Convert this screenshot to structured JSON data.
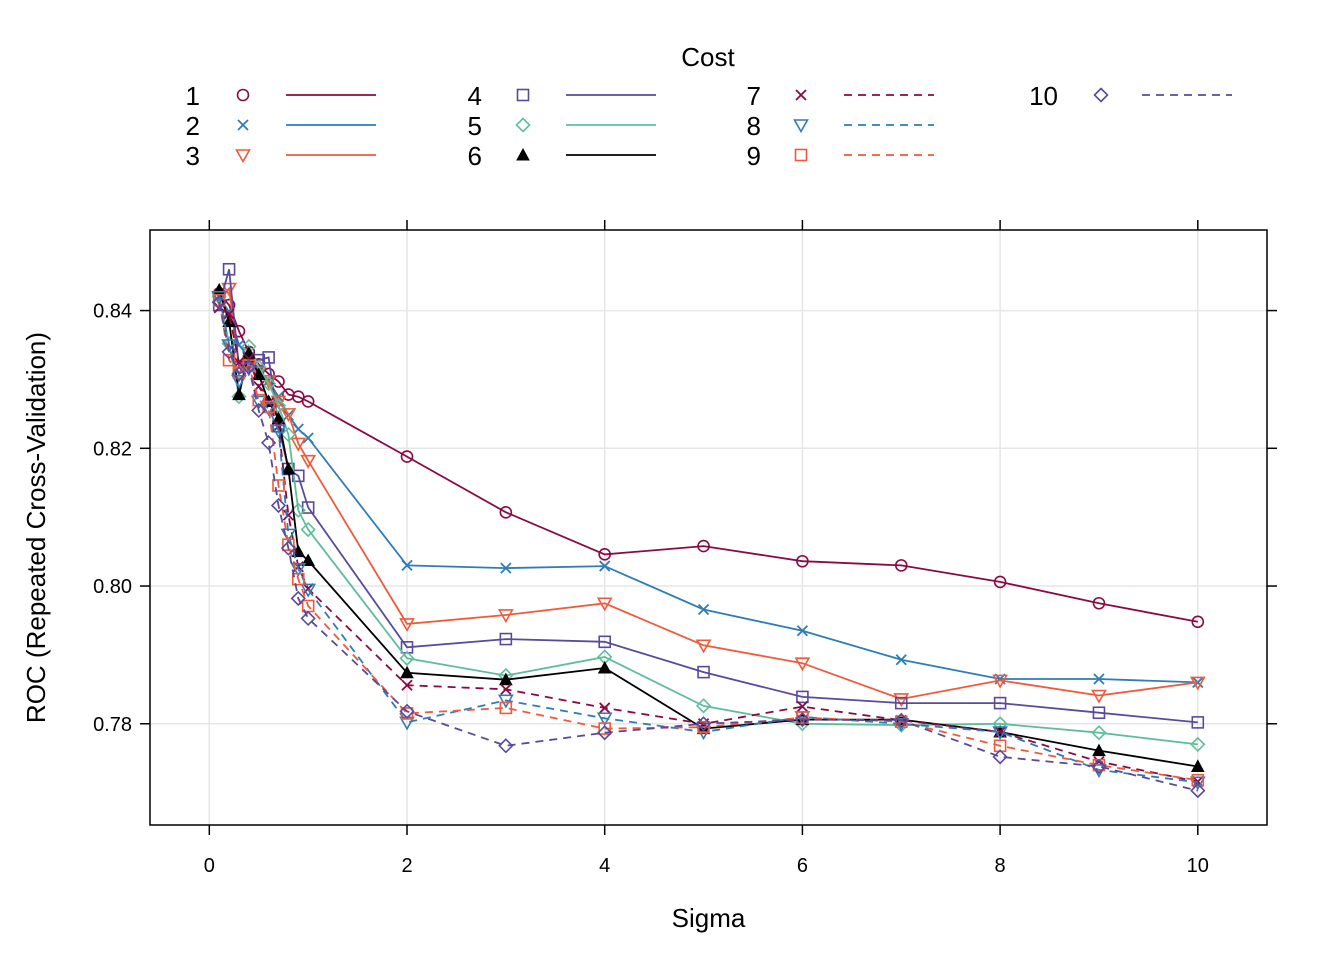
{
  "chart_data": {
    "type": "line",
    "xlabel": "Sigma",
    "ylabel": "ROC (Repeated Cross-Validation)",
    "xlim": [
      -0.6,
      10.7
    ],
    "ylim": [
      0.7653,
      0.8517
    ],
    "x_ticks": [
      0,
      2,
      4,
      6,
      8,
      10
    ],
    "x_tick_labels": [
      "0",
      "2",
      "4",
      "6",
      "8",
      "10"
    ],
    "y_ticks": [
      0.78,
      0.8,
      0.82,
      0.84
    ],
    "y_tick_labels": [
      "0.78",
      "0.80",
      "0.82",
      "0.84"
    ],
    "grid": true,
    "legend": {
      "title": "Cost",
      "placement": "top"
    },
    "x": [
      0.1,
      0.2,
      0.3,
      0.4,
      0.5,
      0.6,
      0.7,
      0.8,
      0.9,
      1,
      2,
      3,
      4,
      5,
      6,
      7,
      8,
      9,
      10
    ],
    "series": [
      {
        "name": "1",
        "color": "#8B0A45",
        "marker": "circle",
        "dash": "solid",
        "values": [
          0.8425,
          0.8408,
          0.837,
          0.834,
          0.8322,
          0.8308,
          0.8297,
          0.8278,
          0.8275,
          0.8268,
          0.8188,
          0.8107,
          0.8046,
          0.8058,
          0.8036,
          0.803,
          0.8006,
          0.7975,
          0.7948
        ]
      },
      {
        "name": "2",
        "color": "#2E7DB8",
        "marker": "x",
        "dash": "solid",
        "values": [
          0.842,
          0.8398,
          0.835,
          0.8332,
          0.8315,
          0.8298,
          0.8275,
          0.8248,
          0.8228,
          0.8215,
          0.803,
          0.8026,
          0.8029,
          0.7966,
          0.7935,
          0.7893,
          0.7865,
          0.7865,
          0.786
        ]
      },
      {
        "name": "3",
        "color": "#F05A3A",
        "marker": "triangle-down",
        "dash": "solid",
        "values": [
          0.8418,
          0.8432,
          0.8318,
          0.8322,
          0.831,
          0.8298,
          0.8268,
          0.825,
          0.8207,
          0.8182,
          0.7945,
          0.7958,
          0.7975,
          0.7914,
          0.7888,
          0.7836,
          0.7863,
          0.7841,
          0.786
        ]
      },
      {
        "name": "4",
        "color": "#5A4A9C",
        "marker": "square",
        "dash": "solid",
        "values": [
          0.8408,
          0.846,
          0.8318,
          0.8326,
          0.8328,
          0.8332,
          0.8232,
          0.817,
          0.816,
          0.8114,
          0.7911,
          0.7923,
          0.7919,
          0.7875,
          0.7839,
          0.783,
          0.783,
          0.7816,
          0.7802
        ]
      },
      {
        "name": "5",
        "color": "#5FBE9A",
        "marker": "diamond",
        "dash": "solid",
        "values": [
          0.842,
          0.8352,
          0.8275,
          0.8348,
          0.8318,
          0.8294,
          0.8262,
          0.822,
          0.811,
          0.8082,
          0.7895,
          0.787,
          0.7897,
          0.7826,
          0.78,
          0.7798,
          0.78,
          0.7787,
          0.777
        ]
      },
      {
        "name": "6",
        "color": "#000000",
        "marker": "triangle-up",
        "dash": "solid",
        "values": [
          0.843,
          0.8384,
          0.8278,
          0.8338,
          0.8307,
          0.8268,
          0.8243,
          0.817,
          0.805,
          0.8037,
          0.7874,
          0.7864,
          0.7881,
          0.7793,
          0.7806,
          0.7806,
          0.7788,
          0.7761,
          0.7738
        ]
      },
      {
        "name": "7",
        "color": "#8B0A45",
        "marker": "x",
        "dash": "dashed",
        "values": [
          0.8404,
          0.8395,
          0.8325,
          0.833,
          0.829,
          0.8266,
          0.8232,
          0.8103,
          0.8028,
          0.7996,
          0.7856,
          0.785,
          0.7823,
          0.78,
          0.7825,
          0.7805,
          0.7788,
          0.7745,
          0.7716
        ]
      },
      {
        "name": "8",
        "color": "#2E7DB8",
        "marker": "triangle-down",
        "dash": "dashed",
        "values": [
          0.842,
          0.835,
          0.8298,
          0.8316,
          0.8268,
          0.8258,
          0.8226,
          0.8075,
          0.8025,
          0.7995,
          0.7802,
          0.7834,
          0.7808,
          0.7788,
          0.781,
          0.78,
          0.7788,
          0.7733,
          0.7715
        ]
      },
      {
        "name": "9",
        "color": "#F05A3A",
        "marker": "square",
        "dash": "dashed",
        "values": [
          0.8415,
          0.8328,
          0.831,
          0.832,
          0.827,
          0.826,
          0.8146,
          0.806,
          0.801,
          0.7971,
          0.7815,
          0.7823,
          0.7793,
          0.7795,
          0.7809,
          0.7803,
          0.7768,
          0.774,
          0.7718
        ]
      },
      {
        "name": "10",
        "color": "#5A4A9C",
        "marker": "diamond",
        "dash": "dashed",
        "values": [
          0.8412,
          0.834,
          0.8308,
          0.8318,
          0.8255,
          0.8208,
          0.8117,
          0.8055,
          0.7982,
          0.7953,
          0.7818,
          0.7768,
          0.7787,
          0.78,
          0.7806,
          0.7805,
          0.7752,
          0.7738,
          0.7703
        ]
      }
    ]
  }
}
